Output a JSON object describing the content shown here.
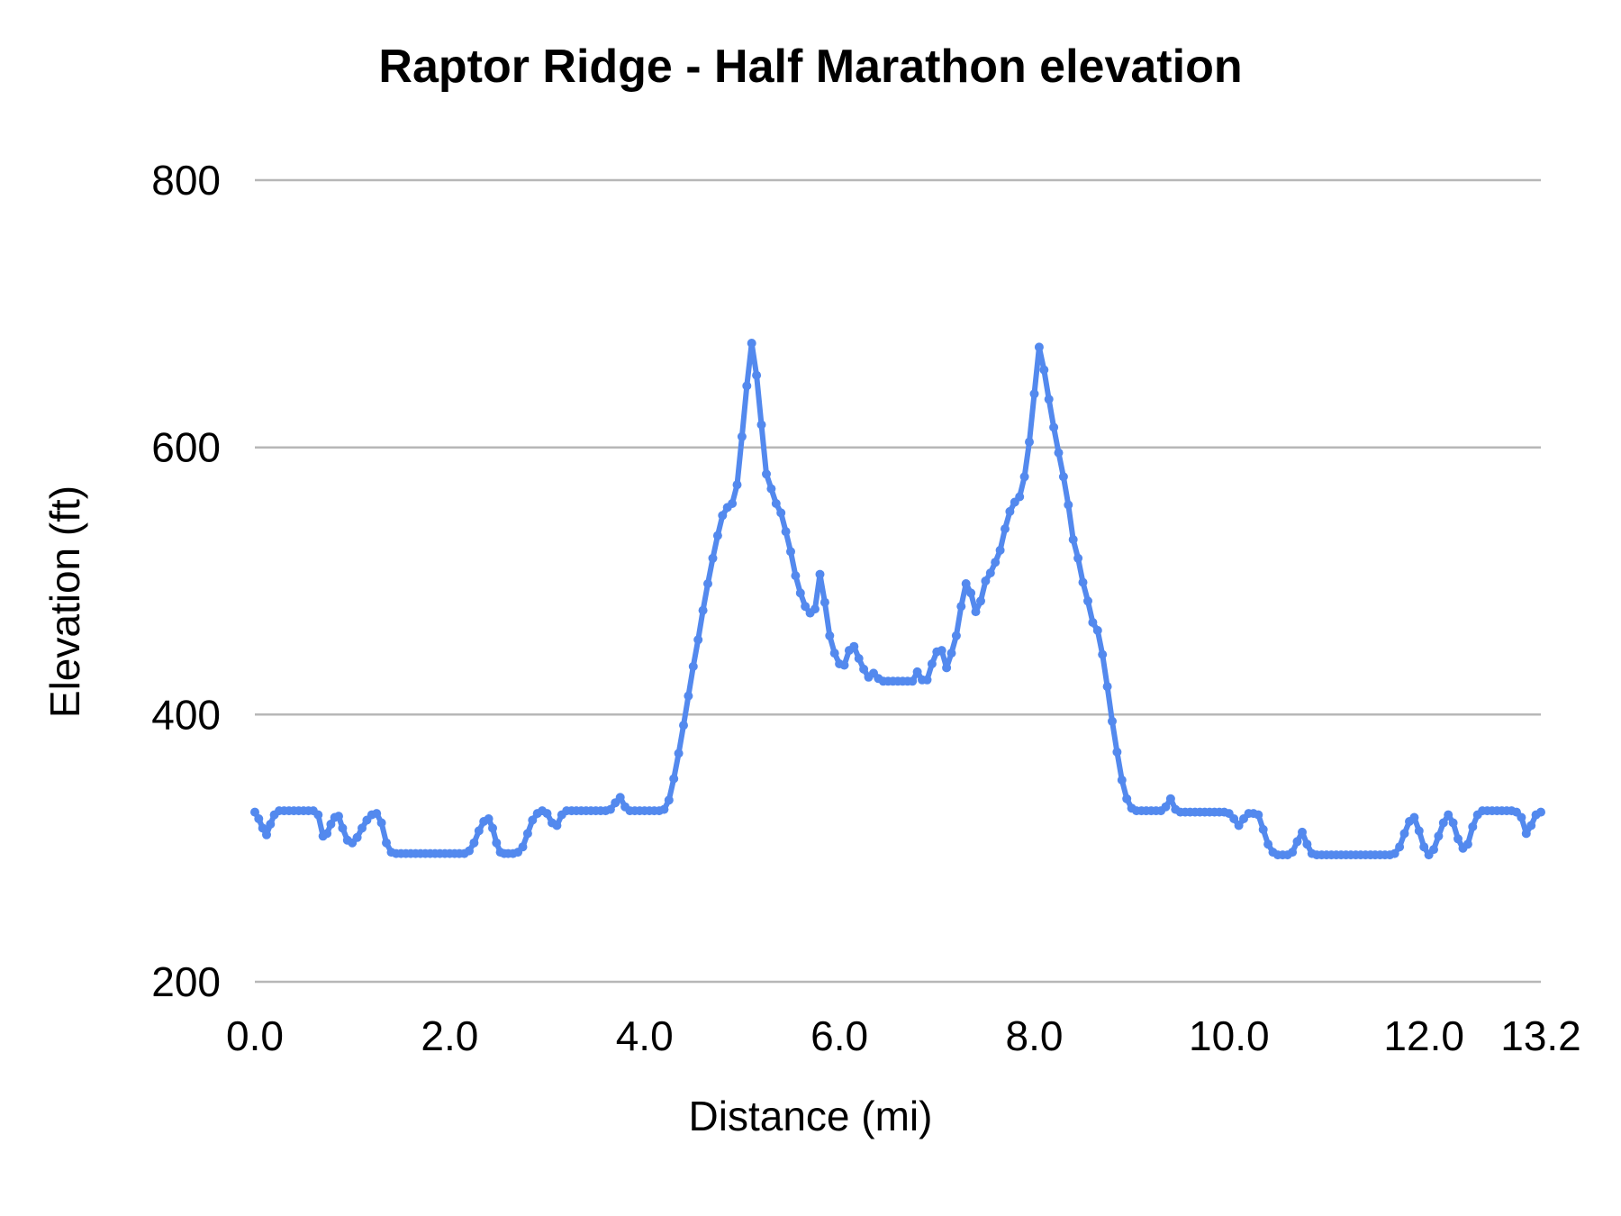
{
  "chart_data": {
    "type": "line",
    "title": "Raptor Ridge - Half Marathon elevation",
    "xlabel": "Distance (mi)",
    "ylabel": "Elevation (ft)",
    "xlim": [
      0,
      13.2
    ],
    "ylim": [
      200,
      800
    ],
    "grid": "horizontal",
    "legend_position": "none",
    "x_ticks": [
      {
        "v": 0,
        "label": "0.0"
      },
      {
        "v": 2,
        "label": "2.0"
      },
      {
        "v": 4,
        "label": "4.0"
      },
      {
        "v": 6,
        "label": "6.0"
      },
      {
        "v": 8,
        "label": "8.0"
      },
      {
        "v": 10,
        "label": "10.0"
      },
      {
        "v": 12,
        "label": "12.0"
      },
      {
        "v": 13.2,
        "label": "13.2"
      }
    ],
    "y_ticks": [
      {
        "v": 800,
        "label": "800"
      },
      {
        "v": 600,
        "label": "600"
      },
      {
        "v": 400,
        "label": "400"
      },
      {
        "v": 200,
        "label": "200"
      }
    ],
    "series": [
      {
        "name": "elevation-profile",
        "marker": "circle",
        "points": [
          [
            0.0,
            327
          ],
          [
            0.04,
            322
          ],
          [
            0.08,
            315
          ],
          [
            0.12,
            310
          ],
          [
            0.16,
            318
          ],
          [
            0.2,
            325
          ],
          [
            0.25,
            328
          ],
          [
            0.3,
            328
          ],
          [
            0.35,
            328
          ],
          [
            0.4,
            328
          ],
          [
            0.45,
            328
          ],
          [
            0.5,
            328
          ],
          [
            0.55,
            328
          ],
          [
            0.6,
            328
          ],
          [
            0.65,
            325
          ],
          [
            0.7,
            309
          ],
          [
            0.74,
            311
          ],
          [
            0.78,
            318
          ],
          [
            0.82,
            323
          ],
          [
            0.86,
            324
          ],
          [
            0.9,
            315
          ],
          [
            0.95,
            306
          ],
          [
            1.0,
            304
          ],
          [
            1.05,
            308
          ],
          [
            1.1,
            315
          ],
          [
            1.15,
            321
          ],
          [
            1.2,
            325
          ],
          [
            1.25,
            326
          ],
          [
            1.3,
            319
          ],
          [
            1.35,
            304
          ],
          [
            1.4,
            297
          ],
          [
            1.45,
            296
          ],
          [
            1.5,
            296
          ],
          [
            1.55,
            296
          ],
          [
            1.6,
            296
          ],
          [
            1.65,
            296
          ],
          [
            1.7,
            296
          ],
          [
            1.75,
            296
          ],
          [
            1.8,
            296
          ],
          [
            1.85,
            296
          ],
          [
            1.9,
            296
          ],
          [
            1.95,
            296
          ],
          [
            2.0,
            296
          ],
          [
            2.05,
            296
          ],
          [
            2.1,
            296
          ],
          [
            2.15,
            296
          ],
          [
            2.2,
            298
          ],
          [
            2.25,
            304
          ],
          [
            2.3,
            313
          ],
          [
            2.35,
            320
          ],
          [
            2.4,
            322
          ],
          [
            2.44,
            315
          ],
          [
            2.48,
            304
          ],
          [
            2.52,
            297
          ],
          [
            2.56,
            296
          ],
          [
            2.6,
            296
          ],
          [
            2.65,
            296
          ],
          [
            2.7,
            297
          ],
          [
            2.75,
            301
          ],
          [
            2.8,
            311
          ],
          [
            2.85,
            321
          ],
          [
            2.9,
            326
          ],
          [
            2.95,
            328
          ],
          [
            3.0,
            326
          ],
          [
            3.05,
            319
          ],
          [
            3.1,
            317
          ],
          [
            3.15,
            325
          ],
          [
            3.2,
            328
          ],
          [
            3.25,
            328
          ],
          [
            3.3,
            328
          ],
          [
            3.35,
            328
          ],
          [
            3.4,
            328
          ],
          [
            3.45,
            328
          ],
          [
            3.5,
            328
          ],
          [
            3.55,
            328
          ],
          [
            3.6,
            328
          ],
          [
            3.65,
            329
          ],
          [
            3.7,
            334
          ],
          [
            3.75,
            338
          ],
          [
            3.8,
            331
          ],
          [
            3.85,
            328
          ],
          [
            3.9,
            328
          ],
          [
            3.95,
            328
          ],
          [
            4.0,
            328
          ],
          [
            4.05,
            328
          ],
          [
            4.1,
            328
          ],
          [
            4.15,
            328
          ],
          [
            4.2,
            329
          ],
          [
            4.25,
            336
          ],
          [
            4.3,
            352
          ],
          [
            4.35,
            371
          ],
          [
            4.4,
            392
          ],
          [
            4.45,
            414
          ],
          [
            4.5,
            436
          ],
          [
            4.55,
            456
          ],
          [
            4.6,
            478
          ],
          [
            4.65,
            498
          ],
          [
            4.7,
            517
          ],
          [
            4.75,
            534
          ],
          [
            4.8,
            549
          ],
          [
            4.85,
            555
          ],
          [
            4.9,
            558
          ],
          [
            4.95,
            572
          ],
          [
            5.0,
            608
          ],
          [
            5.05,
            646
          ],
          [
            5.1,
            678
          ],
          [
            5.15,
            654
          ],
          [
            5.2,
            617
          ],
          [
            5.25,
            580
          ],
          [
            5.3,
            569
          ],
          [
            5.35,
            558
          ],
          [
            5.4,
            551
          ],
          [
            5.45,
            537
          ],
          [
            5.5,
            522
          ],
          [
            5.55,
            504
          ],
          [
            5.6,
            491
          ],
          [
            5.65,
            481
          ],
          [
            5.7,
            476
          ],
          [
            5.75,
            479
          ],
          [
            5.8,
            505
          ],
          [
            5.85,
            484
          ],
          [
            5.9,
            459
          ],
          [
            5.95,
            446
          ],
          [
            6.0,
            438
          ],
          [
            6.05,
            437
          ],
          [
            6.1,
            448
          ],
          [
            6.15,
            451
          ],
          [
            6.2,
            442
          ],
          [
            6.25,
            434
          ],
          [
            6.3,
            428
          ],
          [
            6.35,
            431
          ],
          [
            6.4,
            427
          ],
          [
            6.45,
            425
          ],
          [
            6.5,
            425
          ],
          [
            6.55,
            425
          ],
          [
            6.6,
            425
          ],
          [
            6.65,
            425
          ],
          [
            6.7,
            425
          ],
          [
            6.75,
            425
          ],
          [
            6.8,
            432
          ],
          [
            6.85,
            426
          ],
          [
            6.9,
            426
          ],
          [
            6.95,
            438
          ],
          [
            7.0,
            447
          ],
          [
            7.05,
            448
          ],
          [
            7.1,
            435
          ],
          [
            7.15,
            446
          ],
          [
            7.2,
            459
          ],
          [
            7.25,
            481
          ],
          [
            7.3,
            498
          ],
          [
            7.35,
            491
          ],
          [
            7.4,
            477
          ],
          [
            7.45,
            485
          ],
          [
            7.5,
            500
          ],
          [
            7.55,
            506
          ],
          [
            7.6,
            514
          ],
          [
            7.65,
            523
          ],
          [
            7.7,
            539
          ],
          [
            7.75,
            552
          ],
          [
            7.8,
            559
          ],
          [
            7.85,
            563
          ],
          [
            7.9,
            578
          ],
          [
            7.95,
            604
          ],
          [
            8.0,
            640
          ],
          [
            8.05,
            675
          ],
          [
            8.1,
            658
          ],
          [
            8.15,
            636
          ],
          [
            8.2,
            615
          ],
          [
            8.25,
            596
          ],
          [
            8.3,
            578
          ],
          [
            8.35,
            557
          ],
          [
            8.4,
            531
          ],
          [
            8.45,
            517
          ],
          [
            8.5,
            499
          ],
          [
            8.55,
            485
          ],
          [
            8.6,
            469
          ],
          [
            8.65,
            463
          ],
          [
            8.7,
            445
          ],
          [
            8.75,
            421
          ],
          [
            8.8,
            395
          ],
          [
            8.85,
            372
          ],
          [
            8.9,
            351
          ],
          [
            8.95,
            337
          ],
          [
            9.0,
            330
          ],
          [
            9.05,
            328
          ],
          [
            9.1,
            328
          ],
          [
            9.15,
            328
          ],
          [
            9.2,
            328
          ],
          [
            9.25,
            328
          ],
          [
            9.3,
            328
          ],
          [
            9.35,
            331
          ],
          [
            9.4,
            337
          ],
          [
            9.45,
            329
          ],
          [
            9.5,
            327
          ],
          [
            9.55,
            327
          ],
          [
            9.6,
            327
          ],
          [
            9.65,
            327
          ],
          [
            9.7,
            327
          ],
          [
            9.75,
            327
          ],
          [
            9.8,
            327
          ],
          [
            9.85,
            327
          ],
          [
            9.9,
            327
          ],
          [
            9.95,
            327
          ],
          [
            10.0,
            326
          ],
          [
            10.05,
            322
          ],
          [
            10.1,
            317
          ],
          [
            10.15,
            322
          ],
          [
            10.2,
            326
          ],
          [
            10.25,
            326
          ],
          [
            10.3,
            325
          ],
          [
            10.35,
            314
          ],
          [
            10.4,
            303
          ],
          [
            10.45,
            297
          ],
          [
            10.5,
            295
          ],
          [
            10.55,
            295
          ],
          [
            10.6,
            295
          ],
          [
            10.65,
            297
          ],
          [
            10.7,
            305
          ],
          [
            10.75,
            312
          ],
          [
            10.8,
            303
          ],
          [
            10.85,
            296
          ],
          [
            10.9,
            295
          ],
          [
            10.95,
            295
          ],
          [
            11.0,
            295
          ],
          [
            11.05,
            295
          ],
          [
            11.1,
            295
          ],
          [
            11.15,
            295
          ],
          [
            11.2,
            295
          ],
          [
            11.25,
            295
          ],
          [
            11.3,
            295
          ],
          [
            11.35,
            295
          ],
          [
            11.4,
            295
          ],
          [
            11.45,
            295
          ],
          [
            11.5,
            295
          ],
          [
            11.55,
            295
          ],
          [
            11.6,
            295
          ],
          [
            11.65,
            295
          ],
          [
            11.7,
            296
          ],
          [
            11.75,
            301
          ],
          [
            11.8,
            311
          ],
          [
            11.85,
            320
          ],
          [
            11.9,
            323
          ],
          [
            11.95,
            313
          ],
          [
            12.0,
            301
          ],
          [
            12.05,
            295
          ],
          [
            12.1,
            299
          ],
          [
            12.15,
            309
          ],
          [
            12.2,
            319
          ],
          [
            12.25,
            325
          ],
          [
            12.3,
            319
          ],
          [
            12.35,
            307
          ],
          [
            12.4,
            300
          ],
          [
            12.45,
            303
          ],
          [
            12.5,
            316
          ],
          [
            12.55,
            325
          ],
          [
            12.6,
            328
          ],
          [
            12.65,
            328
          ],
          [
            12.7,
            328
          ],
          [
            12.75,
            328
          ],
          [
            12.8,
            328
          ],
          [
            12.85,
            328
          ],
          [
            12.9,
            328
          ],
          [
            12.95,
            327
          ],
          [
            13.0,
            323
          ],
          [
            13.05,
            311
          ],
          [
            13.1,
            317
          ],
          [
            13.15,
            325
          ],
          [
            13.2,
            327
          ]
        ]
      }
    ]
  },
  "styles": {
    "line_color": "#5389ee",
    "gridline_color": "#b7b7b7",
    "text_color": "#000000",
    "background": "#ffffff"
  }
}
